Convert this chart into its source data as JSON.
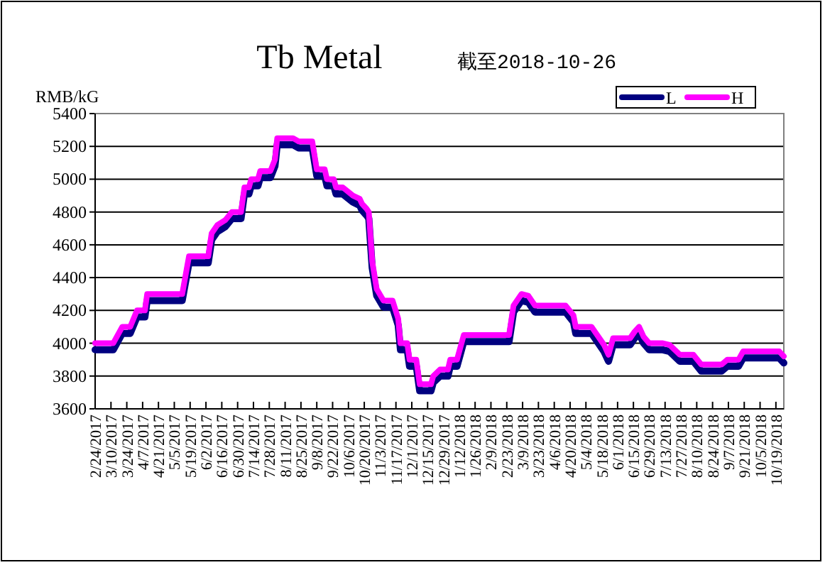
{
  "chart_data": {
    "type": "line",
    "title": "Tb  Metal",
    "subtitle": "截至2018-10-26",
    "ylabel": "RMB/kG",
    "x": [
      "2017-02-24",
      "2017-03-12",
      "2017-03-20",
      "2017-03-27",
      "2017-04-02",
      "2017-04-09",
      "2017-04-11",
      "2017-05-12",
      "2017-05-18",
      "2017-06-04",
      "2017-06-07",
      "2017-06-12",
      "2017-06-19",
      "2017-06-25",
      "2017-07-03",
      "2017-07-06",
      "2017-07-10",
      "2017-07-12",
      "2017-07-18",
      "2017-07-20",
      "2017-07-29",
      "2017-08-02",
      "2017-08-04",
      "2017-08-18",
      "2017-08-23",
      "2017-09-04",
      "2017-09-08",
      "2017-09-15",
      "2017-09-17",
      "2017-09-23",
      "2017-09-25",
      "2017-10-01",
      "2017-10-10",
      "2017-10-16",
      "2017-10-18",
      "2017-10-22",
      "2017-10-24",
      "2017-10-27",
      "2017-10-31",
      "2017-11-06",
      "2017-11-14",
      "2017-11-19",
      "2017-11-21",
      "2017-11-27",
      "2017-11-29",
      "2017-12-05",
      "2017-12-08",
      "2017-12-18",
      "2017-12-20",
      "2017-12-26",
      "2018-01-02",
      "2018-01-04",
      "2018-01-10",
      "2018-01-16",
      "2018-02-25",
      "2018-03-01",
      "2018-03-08",
      "2018-03-14",
      "2018-03-20",
      "2018-04-16",
      "2018-04-23",
      "2018-04-25",
      "2018-05-09",
      "2018-05-13",
      "2018-05-20",
      "2018-05-24",
      "2018-05-28",
      "2018-06-12",
      "2018-06-16",
      "2018-06-20",
      "2018-06-24",
      "2018-06-29",
      "2018-07-11",
      "2018-07-17",
      "2018-07-26",
      "2018-08-07",
      "2018-08-14",
      "2018-09-01",
      "2018-09-06",
      "2018-09-16",
      "2018-09-20",
      "2018-10-22",
      "2018-10-26"
    ],
    "series": [
      {
        "name": "L",
        "color": "#000080",
        "values": [
          3960,
          3960,
          4060,
          4060,
          4160,
          4160,
          4260,
          4260,
          4490,
          4490,
          4630,
          4680,
          4710,
          4760,
          4760,
          4910,
          4910,
          4960,
          4960,
          5010,
          5010,
          5080,
          5210,
          5210,
          5190,
          5190,
          5020,
          5020,
          4960,
          4960,
          4910,
          4910,
          4860,
          4840,
          4810,
          4780,
          4760,
          4460,
          4290,
          4220,
          4220,
          4110,
          3960,
          3960,
          3860,
          3860,
          3710,
          3710,
          3760,
          3800,
          3800,
          3860,
          3860,
          4010,
          4010,
          4190,
          4260,
          4250,
          4190,
          4190,
          4130,
          4060,
          4060,
          4020,
          3950,
          3890,
          3990,
          3990,
          4030,
          4060,
          4000,
          3960,
          3960,
          3950,
          3890,
          3890,
          3830,
          3830,
          3860,
          3860,
          3910,
          3910,
          3880
        ]
      },
      {
        "name": "H",
        "color": "#ff00ff",
        "values": [
          4000,
          4000,
          4100,
          4100,
          4200,
          4200,
          4300,
          4300,
          4530,
          4530,
          4670,
          4720,
          4750,
          4800,
          4800,
          4950,
          4950,
          5000,
          5000,
          5050,
          5050,
          5120,
          5250,
          5250,
          5230,
          5230,
          5060,
          5060,
          5000,
          5000,
          4950,
          4950,
          4900,
          4880,
          4850,
          4820,
          4800,
          4500,
          4330,
          4260,
          4260,
          4150,
          4000,
          4000,
          3900,
          3900,
          3750,
          3750,
          3800,
          3840,
          3840,
          3900,
          3900,
          4050,
          4050,
          4230,
          4300,
          4290,
          4230,
          4230,
          4170,
          4100,
          4100,
          4060,
          3990,
          3930,
          4030,
          4030,
          4070,
          4100,
          4040,
          4000,
          4000,
          3990,
          3930,
          3930,
          3870,
          3870,
          3900,
          3900,
          3950,
          3950,
          3920
        ]
      }
    ],
    "xlim": [
      "2017-02-24",
      "2018-10-26"
    ],
    "xticks": [
      {
        "value": "2017-02-24",
        "label": "2/24/2017"
      },
      {
        "value": "2017-03-10",
        "label": "3/10/2017"
      },
      {
        "value": "2017-03-24",
        "label": "3/24/2017"
      },
      {
        "value": "2017-04-07",
        "label": "4/7/2017"
      },
      {
        "value": "2017-04-21",
        "label": "4/21/2017"
      },
      {
        "value": "2017-05-05",
        "label": "5/5/2017"
      },
      {
        "value": "2017-05-19",
        "label": "5/19/2017"
      },
      {
        "value": "2017-06-02",
        "label": "6/2/2017"
      },
      {
        "value": "2017-06-16",
        "label": "6/16/2017"
      },
      {
        "value": "2017-06-30",
        "label": "6/30/2017"
      },
      {
        "value": "2017-07-14",
        "label": "7/14/2017"
      },
      {
        "value": "2017-07-28",
        "label": "7/28/2017"
      },
      {
        "value": "2017-08-11",
        "label": "8/11/2017"
      },
      {
        "value": "2017-08-25",
        "label": "8/25/2017"
      },
      {
        "value": "2017-09-08",
        "label": "9/8/2017"
      },
      {
        "value": "2017-09-22",
        "label": "9/22/2017"
      },
      {
        "value": "2017-10-06",
        "label": "10/6/2017"
      },
      {
        "value": "2017-10-20",
        "label": "10/20/2017"
      },
      {
        "value": "2017-11-03",
        "label": "11/3/2017"
      },
      {
        "value": "2017-11-17",
        "label": "11/17/2017"
      },
      {
        "value": "2017-12-01",
        "label": "12/1/2017"
      },
      {
        "value": "2017-12-15",
        "label": "12/15/2017"
      },
      {
        "value": "2017-12-29",
        "label": "12/29/2017"
      },
      {
        "value": "2018-01-12",
        "label": "1/12/2018"
      },
      {
        "value": "2018-01-26",
        "label": "1/26/2018"
      },
      {
        "value": "2018-02-09",
        "label": "2/9/2018"
      },
      {
        "value": "2018-02-23",
        "label": "2/23/2018"
      },
      {
        "value": "2018-03-09",
        "label": "3/9/2018"
      },
      {
        "value": "2018-03-23",
        "label": "3/23/2018"
      },
      {
        "value": "2018-04-06",
        "label": "4/6/2018"
      },
      {
        "value": "2018-04-20",
        "label": "4/20/2018"
      },
      {
        "value": "2018-05-04",
        "label": "5/4/2018"
      },
      {
        "value": "2018-05-18",
        "label": "5/18/2018"
      },
      {
        "value": "2018-06-01",
        "label": "6/1/2018"
      },
      {
        "value": "2018-06-15",
        "label": "6/15/2018"
      },
      {
        "value": "2018-06-29",
        "label": "6/29/2018"
      },
      {
        "value": "2018-07-13",
        "label": "7/13/2018"
      },
      {
        "value": "2018-07-27",
        "label": "7/27/2018"
      },
      {
        "value": "2018-08-10",
        "label": "8/10/2018"
      },
      {
        "value": "2018-08-24",
        "label": "8/24/2018"
      },
      {
        "value": "2018-09-07",
        "label": "9/7/2018"
      },
      {
        "value": "2018-09-21",
        "label": "9/21/2018"
      },
      {
        "value": "2018-10-05",
        "label": "10/5/2018"
      },
      {
        "value": "2018-10-19",
        "label": "10/19/2018"
      }
    ],
    "ylim": [
      3600,
      5400
    ],
    "yticks": [
      3600,
      3800,
      4000,
      4200,
      4400,
      4600,
      4800,
      5000,
      5200,
      5400
    ],
    "grid": "y",
    "legend": "top right"
  }
}
